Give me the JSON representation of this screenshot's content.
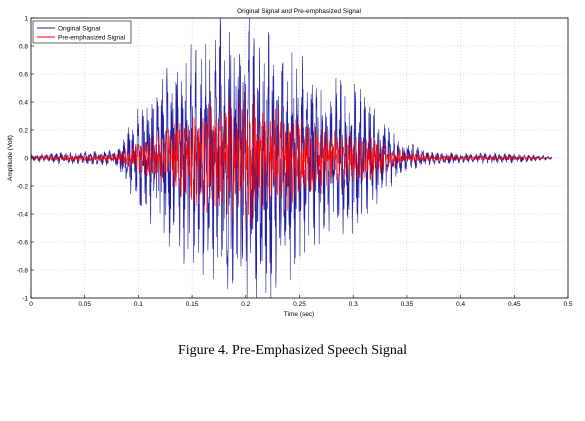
{
  "figure": {
    "caption": "Figure 4. Pre-Emphasized Speech Signal"
  },
  "chart_data": {
    "type": "line",
    "title": "Original Signal and Pre-emphasized Signal",
    "xlabel": "Time (sec)",
    "ylabel": "Amplitude (Volt)",
    "xlim": [
      0,
      0.5
    ],
    "ylim": [
      -1,
      1
    ],
    "xticks": [
      "0",
      "0.05",
      "0.1",
      "0.15",
      "0.2",
      "0.25",
      "0.3",
      "0.35",
      "0.4",
      "0.45",
      "0.5"
    ],
    "yticks": [
      "1",
      "0.8",
      "0.6",
      "0.4",
      "0.2",
      "0",
      "-0.2",
      "-0.4",
      "-0.6",
      "-0.8",
      "-1"
    ],
    "grid": true,
    "legend_position": "top-left",
    "series": [
      {
        "name": "Original Signal",
        "color": "#2020a0",
        "envelope": {
          "t": [
            0,
            0.02,
            0.05,
            0.08,
            0.1,
            0.12,
            0.14,
            0.16,
            0.18,
            0.2,
            0.22,
            0.24,
            0.26,
            0.28,
            0.3,
            0.32,
            0.34,
            0.37,
            0.4,
            0.45,
            0.485
          ],
          "amplitude": [
            0.02,
            0.03,
            0.04,
            0.05,
            0.3,
            0.45,
            0.65,
            0.7,
            0.8,
            0.85,
            0.8,
            0.7,
            0.5,
            0.45,
            0.45,
            0.3,
            0.12,
            0.04,
            0.03,
            0.03,
            0.01
          ]
        }
      },
      {
        "name": "Pre-emphasized Signal",
        "color": "#ff0000",
        "envelope": {
          "t": [
            0,
            0.02,
            0.05,
            0.08,
            0.1,
            0.12,
            0.14,
            0.16,
            0.18,
            0.2,
            0.22,
            0.24,
            0.26,
            0.28,
            0.3,
            0.32,
            0.34,
            0.37,
            0.4,
            0.45,
            0.485
          ],
          "amplitude": [
            0.01,
            0.02,
            0.02,
            0.03,
            0.1,
            0.15,
            0.25,
            0.3,
            0.35,
            0.4,
            0.3,
            0.3,
            0.22,
            0.18,
            0.15,
            0.12,
            0.05,
            0.02,
            0.015,
            0.015,
            0.005
          ]
        }
      }
    ]
  }
}
